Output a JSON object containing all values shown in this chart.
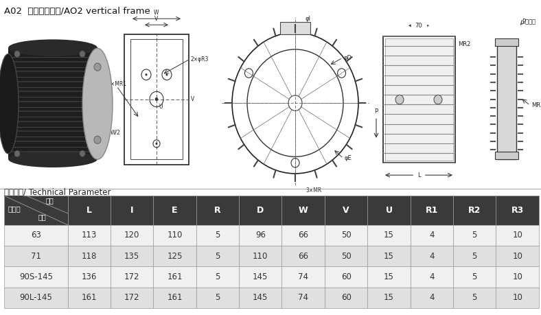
{
  "title": "A02  系列立式机座/AO2 vertical frame",
  "section_label": "技术参数/ Technical Parameter",
  "col_headers": [
    "L",
    "I",
    "E",
    "R",
    "D",
    "W",
    "V",
    "U",
    "R1",
    "R2",
    "R3"
  ],
  "rows": [
    [
      "63",
      "113",
      "120",
      "110",
      "5",
      "96",
      "66",
      "50",
      "15",
      "4",
      "5",
      "10"
    ],
    [
      "71",
      "118",
      "135",
      "125",
      "5",
      "110",
      "66",
      "50",
      "15",
      "4",
      "5",
      "10"
    ],
    [
      "90S-145",
      "136",
      "172",
      "161",
      "5",
      "145",
      "74",
      "60",
      "15",
      "4",
      "5",
      "10"
    ],
    [
      "90L-145",
      "161",
      "172",
      "161",
      "5",
      "145",
      "74",
      "60",
      "15",
      "4",
      "5",
      "10"
    ]
  ],
  "header_bg": "#3a3a3a",
  "header_fg": "#ffffff",
  "row_bg_odd": "#f0f0f0",
  "row_bg_even": "#e0e0e0",
  "table_border": "#999999",
  "bg_color": "#ffffff",
  "text_color": "#333333"
}
